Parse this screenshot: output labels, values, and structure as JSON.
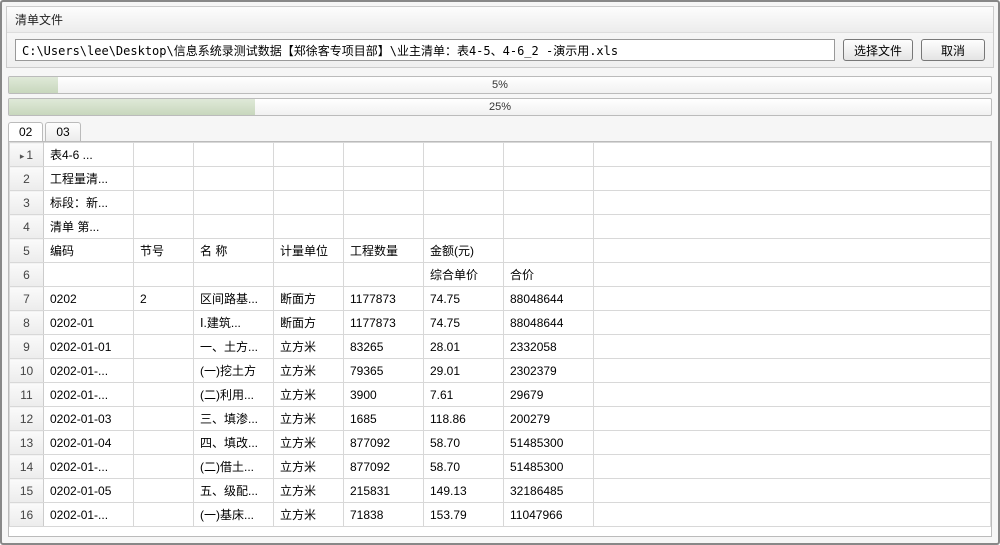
{
  "panel": {
    "title": "清单文件",
    "path": "C:\\Users\\lee\\Desktop\\信息系统录测试数据【郑徐客专项目部】\\业主清单：表4-5、4-6_2 -演示用.xls",
    "choose_label": "选择文件",
    "cancel_label": "取消"
  },
  "progress": {
    "p1": {
      "percent": 5,
      "label": "5%"
    },
    "p2": {
      "percent": 25,
      "label": "25%"
    }
  },
  "tabs": {
    "items": [
      {
        "id": "02",
        "label": "02",
        "active": true
      },
      {
        "id": "03",
        "label": "03",
        "active": false
      }
    ]
  },
  "grid": {
    "col_widths": {
      "rowhdr": 34,
      "code": 90,
      "node": 60,
      "name": 80,
      "unit": 70,
      "qty": 80,
      "price": 80,
      "total": 90
    },
    "rows": [
      {
        "n": 1,
        "sel": true,
        "code": "表4-6    ...",
        "node": "",
        "name": "",
        "unit": "",
        "qty": "",
        "price": "",
        "total": ""
      },
      {
        "n": 2,
        "code": "工程量清...",
        "node": "",
        "name": "",
        "unit": "",
        "qty": "",
        "price": "",
        "total": ""
      },
      {
        "n": 3,
        "code": "标段：新...",
        "node": "",
        "name": "",
        "unit": "",
        "qty": "",
        "price": "",
        "total": ""
      },
      {
        "n": 4,
        "code": "清单   第...",
        "node": "",
        "name": "",
        "unit": "",
        "qty": "",
        "price": "",
        "total": ""
      },
      {
        "n": 5,
        "code": "编码",
        "node": "节号",
        "name": "名  称",
        "unit": "计量单位",
        "qty": "工程数量",
        "price": "金额(元)",
        "total": ""
      },
      {
        "n": 6,
        "code": "",
        "node": "",
        "name": "",
        "unit": "",
        "qty": "",
        "price": "综合单价",
        "total": "合价"
      },
      {
        "n": 7,
        "code": "0202",
        "node": "2",
        "name": "区间路基...",
        "unit": "断面方",
        "qty": "1177873",
        "price": "74.75",
        "total": "88048644"
      },
      {
        "n": 8,
        "code": "0202-01",
        "node": "",
        "name": "Ⅰ.建筑...",
        "unit": "断面方",
        "qty": "1177873",
        "price": "74.75",
        "total": "88048644"
      },
      {
        "n": 9,
        "code": "0202-01-01",
        "node": "",
        "name": "一、土方...",
        "unit": "立方米",
        "qty": "83265",
        "price": "28.01",
        "total": "2332058"
      },
      {
        "n": 10,
        "code": "0202-01-...",
        "node": "",
        "name": "(一)挖土方",
        "unit": "立方米",
        "qty": "79365",
        "price": "29.01",
        "total": "2302379"
      },
      {
        "n": 11,
        "code": "0202-01-...",
        "node": "",
        "name": "(二)利用...",
        "unit": "立方米",
        "qty": "3900",
        "price": "7.61",
        "total": "29679"
      },
      {
        "n": 12,
        "code": "0202-01-03",
        "node": "",
        "name": "三、填渗...",
        "unit": "立方米",
        "qty": "1685",
        "price": "118.86",
        "total": "200279"
      },
      {
        "n": 13,
        "code": "0202-01-04",
        "node": "",
        "name": "四、填改...",
        "unit": "立方米",
        "qty": "877092",
        "price": "58.70",
        "total": "51485300"
      },
      {
        "n": 14,
        "code": "0202-01-...",
        "node": "",
        "name": "(二)借土...",
        "unit": "立方米",
        "qty": "877092",
        "price": "58.70",
        "total": "51485300"
      },
      {
        "n": 15,
        "code": "0202-01-05",
        "node": "",
        "name": "五、级配...",
        "unit": "立方米",
        "qty": "215831",
        "price": "149.13",
        "total": "32186485"
      },
      {
        "n": 16,
        "code": "0202-01-...",
        "node": "",
        "name": "(一)基床...",
        "unit": "立方米",
        "qty": "71838",
        "price": "153.79",
        "total": "11047966"
      }
    ]
  },
  "colors": {
    "border": "#888888",
    "panel_bg_top": "#fafafa",
    "panel_bg_bot": "#efefef",
    "progress_fill_top": "#dfe9d8",
    "progress_fill_bot": "#c8d7bd",
    "grid_border": "#d8d8d8"
  }
}
